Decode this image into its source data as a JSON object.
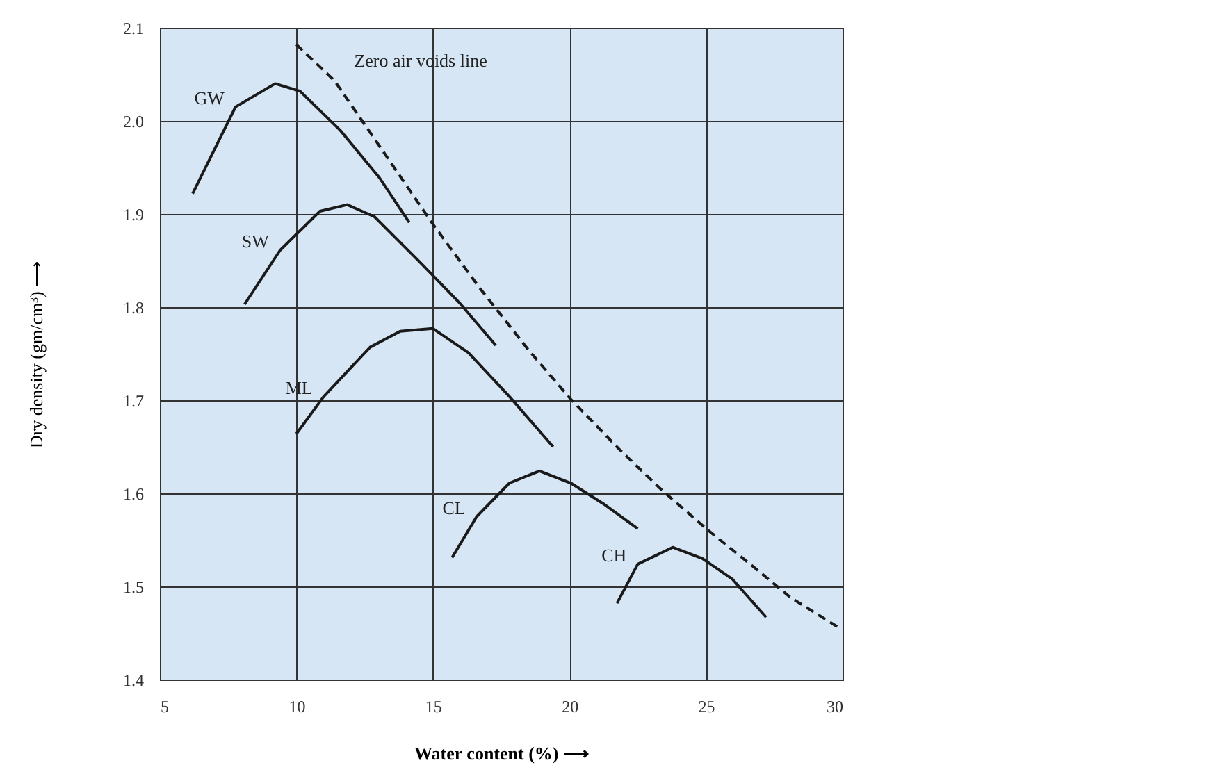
{
  "chart_data": {
    "type": "line",
    "xlabel": "Water content (%) ⟶",
    "ylabel": "Dry density (gm/cm³) ⟶",
    "xlim": [
      5,
      30
    ],
    "xticks": [
      5,
      10,
      15,
      20,
      25,
      30
    ],
    "ylim": [
      1.4,
      2.1
    ],
    "yticks": [
      1.4,
      1.5,
      1.6,
      1.7,
      1.8,
      1.9,
      {
        "value": 2,
        "label": "2.0"
      },
      2.1
    ],
    "grid": true,
    "marker": "none",
    "series": [
      {
        "name": "GW",
        "color": "#1a1a1a",
        "line_style": "solid",
        "x": [
          6.2,
          7.77,
          9.22,
          10.13,
          11.6,
          13.04,
          14.13
        ],
        "values": [
          1.922,
          2.015,
          2.04,
          2.032,
          1.99,
          1.939,
          1.891
        ]
      },
      {
        "name": "SW",
        "color": "#1a1a1a",
        "line_style": "solid",
        "x": [
          8.1,
          9.4,
          10.86,
          11.86,
          12.86,
          14.5,
          15.96,
          17.3
        ],
        "values": [
          1.803,
          1.861,
          1.903,
          1.91,
          1.897,
          1.849,
          1.805,
          1.759
        ]
      },
      {
        "name": "ML",
        "color": "#1a1a1a",
        "line_style": "solid",
        "x": [
          10.0,
          11.0,
          12.7,
          13.8,
          15.0,
          16.3,
          17.8,
          19.4
        ],
        "values": [
          1.664,
          1.704,
          1.757,
          1.774,
          1.777,
          1.751,
          1.704,
          1.65
        ]
      },
      {
        "name": "CL",
        "color": "#1a1a1a",
        "line_style": "solid",
        "x": [
          15.7,
          16.6,
          17.8,
          18.9,
          20.05,
          21.23,
          22.5
        ],
        "values": [
          1.531,
          1.575,
          1.611,
          1.624,
          1.611,
          1.589,
          1.562
        ]
      },
      {
        "name": "CH",
        "color": "#1a1a1a",
        "line_style": "solid",
        "x": [
          21.74,
          22.5,
          23.78,
          24.87,
          25.96,
          27.2
        ],
        "values": [
          1.482,
          1.524,
          1.542,
          1.53,
          1.508,
          1.467
        ]
      },
      {
        "name": "Zero air voids line",
        "color": "#1a1a1a",
        "line_style": "dashed",
        "x": [
          10.0,
          11.4,
          13.04,
          15.0,
          16.7,
          18.5,
          20.05,
          21.8,
          23.4,
          25.05,
          26.7,
          28.1,
          29.96
        ],
        "values": [
          2.082,
          2.043,
          1.973,
          1.889,
          1.821,
          1.754,
          1.701,
          1.648,
          1.603,
          1.561,
          1.522,
          1.488,
          1.454
        ]
      }
    ]
  }
}
